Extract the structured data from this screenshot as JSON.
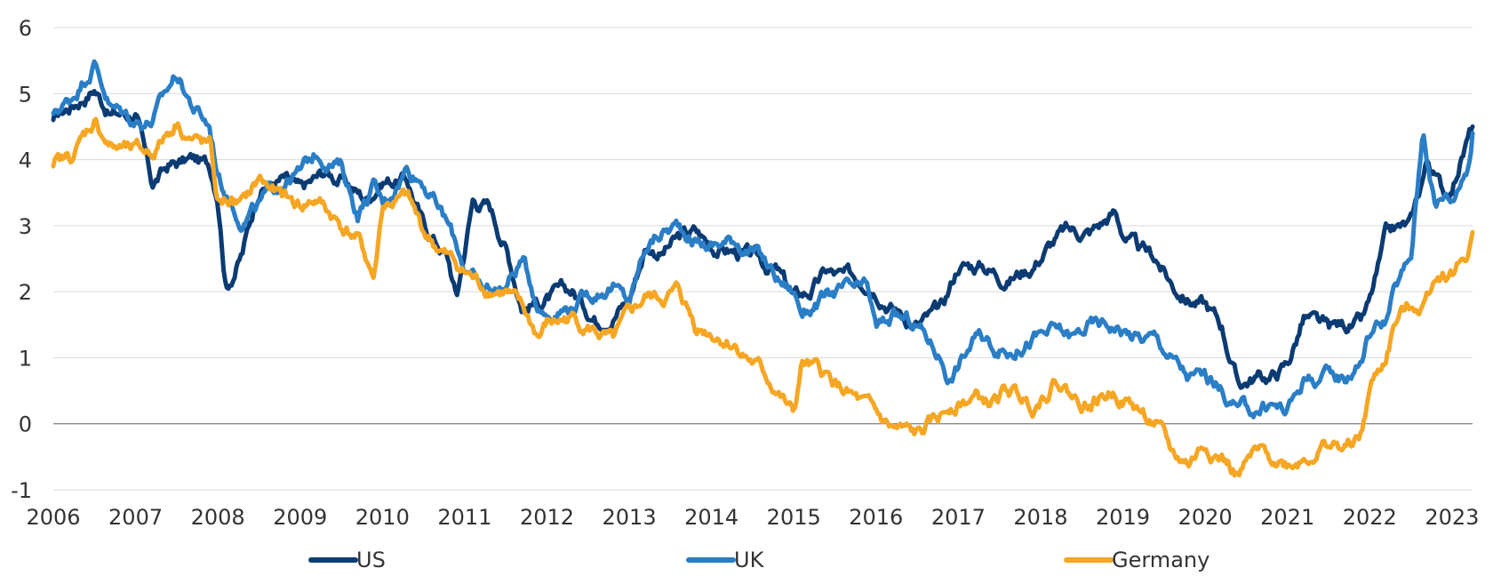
{
  "chart_data": {
    "type": "line",
    "title": "",
    "xlabel": "",
    "ylabel": "",
    "xlim": [
      2006,
      2023.25
    ],
    "ylim": [
      -1,
      6
    ],
    "x_ticks": [
      "2006",
      "2007",
      "2008",
      "2009",
      "2010",
      "2011",
      "2012",
      "2013",
      "2014",
      "2015",
      "2016",
      "2017",
      "2018",
      "2019",
      "2020",
      "2021",
      "2022",
      "2023"
    ],
    "y_ticks": [
      "6",
      "5",
      "4",
      "3",
      "2",
      "1",
      "0",
      "-1"
    ],
    "grid": true,
    "legend_position": "bottom",
    "series": [
      {
        "name": "US",
        "color": "#0b3b73",
        "points": [
          [
            2006.0,
            4.6
          ],
          [
            2006.2,
            4.8
          ],
          [
            2006.5,
            5.1
          ],
          [
            2006.7,
            4.7
          ],
          [
            2007.0,
            4.7
          ],
          [
            2007.2,
            3.6
          ],
          [
            2007.4,
            3.9
          ],
          [
            2007.7,
            4.0
          ],
          [
            2007.9,
            3.9
          ],
          [
            2008.0,
            3.5
          ],
          [
            2008.1,
            2.1
          ],
          [
            2008.3,
            2.6
          ],
          [
            2008.5,
            3.6
          ],
          [
            2008.8,
            3.7
          ],
          [
            2009.0,
            3.5
          ],
          [
            2009.3,
            3.8
          ],
          [
            2009.5,
            3.7
          ],
          [
            2009.8,
            3.4
          ],
          [
            2010.0,
            3.7
          ],
          [
            2010.3,
            3.7
          ],
          [
            2010.5,
            3.0
          ],
          [
            2010.7,
            2.7
          ],
          [
            2010.8,
            2.5
          ],
          [
            2010.9,
            1.9
          ],
          [
            2011.1,
            3.4
          ],
          [
            2011.3,
            3.3
          ],
          [
            2011.5,
            2.7
          ],
          [
            2011.7,
            1.8
          ],
          [
            2012.0,
            1.9
          ],
          [
            2012.3,
            2.0
          ],
          [
            2012.6,
            1.6
          ],
          [
            2012.8,
            1.7
          ],
          [
            2013.0,
            1.9
          ],
          [
            2013.2,
            2.7
          ],
          [
            2013.4,
            2.6
          ],
          [
            2013.6,
            2.8
          ],
          [
            2013.8,
            2.9
          ],
          [
            2014.0,
            2.7
          ],
          [
            2014.3,
            2.6
          ],
          [
            2014.5,
            2.5
          ],
          [
            2014.8,
            2.3
          ],
          [
            2015.0,
            1.9
          ],
          [
            2015.2,
            2.0
          ],
          [
            2015.4,
            2.3
          ],
          [
            2015.6,
            2.2
          ],
          [
            2015.9,
            2.2
          ],
          [
            2016.0,
            2.1
          ],
          [
            2016.2,
            1.8
          ],
          [
            2016.5,
            1.5
          ],
          [
            2016.8,
            1.7
          ],
          [
            2017.0,
            2.4
          ],
          [
            2017.3,
            2.4
          ],
          [
            2017.6,
            2.2
          ],
          [
            2017.9,
            2.4
          ],
          [
            2018.1,
            2.7
          ],
          [
            2018.3,
            2.9
          ],
          [
            2018.6,
            2.9
          ],
          [
            2018.9,
            3.2
          ],
          [
            2019.0,
            2.9
          ],
          [
            2019.2,
            2.6
          ],
          [
            2019.4,
            2.5
          ],
          [
            2019.6,
            2.1
          ],
          [
            2019.8,
            1.9
          ],
          [
            2020.0,
            1.8
          ],
          [
            2020.2,
            1.5
          ],
          [
            2020.4,
            0.6
          ],
          [
            2020.6,
            0.7
          ],
          [
            2020.8,
            0.7
          ],
          [
            2021.0,
            0.9
          ],
          [
            2021.2,
            1.6
          ],
          [
            2021.5,
            1.4
          ],
          [
            2021.7,
            1.5
          ],
          [
            2021.9,
            1.5
          ],
          [
            2022.0,
            1.8
          ],
          [
            2022.2,
            2.8
          ],
          [
            2022.3,
            2.9
          ],
          [
            2022.5,
            3.0
          ],
          [
            2022.7,
            4.0
          ],
          [
            2022.9,
            3.5
          ],
          [
            2023.0,
            3.6
          ],
          [
            2023.1,
            4.0
          ],
          [
            2023.25,
            4.5
          ]
        ]
      },
      {
        "name": "UK",
        "color": "#2a7ec6",
        "points": [
          [
            2006.0,
            4.7
          ],
          [
            2006.2,
            4.9
          ],
          [
            2006.5,
            5.5
          ],
          [
            2006.7,
            4.8
          ],
          [
            2007.0,
            4.6
          ],
          [
            2007.2,
            4.6
          ],
          [
            2007.5,
            5.3
          ],
          [
            2007.7,
            4.8
          ],
          [
            2007.9,
            4.5
          ],
          [
            2008.0,
            3.8
          ],
          [
            2008.1,
            3.5
          ],
          [
            2008.3,
            3.1
          ],
          [
            2008.5,
            3.3
          ],
          [
            2008.8,
            3.7
          ],
          [
            2009.0,
            3.8
          ],
          [
            2009.2,
            4.1
          ],
          [
            2009.5,
            3.9
          ],
          [
            2009.7,
            3.2
          ],
          [
            2009.9,
            3.6
          ],
          [
            2010.0,
            3.3
          ],
          [
            2010.3,
            3.9
          ],
          [
            2010.5,
            3.7
          ],
          [
            2010.8,
            3.0
          ],
          [
            2011.0,
            2.4
          ],
          [
            2011.2,
            2.0
          ],
          [
            2011.5,
            2.1
          ],
          [
            2011.7,
            2.5
          ],
          [
            2011.9,
            1.8
          ],
          [
            2012.0,
            1.7
          ],
          [
            2012.3,
            1.8
          ],
          [
            2012.6,
            2.0
          ],
          [
            2012.8,
            2.1
          ],
          [
            2013.0,
            1.8
          ],
          [
            2013.2,
            2.7
          ],
          [
            2013.4,
            2.9
          ],
          [
            2013.6,
            3.0
          ],
          [
            2013.8,
            2.8
          ],
          [
            2014.0,
            2.7
          ],
          [
            2014.3,
            2.8
          ],
          [
            2014.6,
            2.5
          ],
          [
            2014.8,
            2.2
          ],
          [
            2015.0,
            2.0
          ],
          [
            2015.1,
            1.7
          ],
          [
            2015.4,
            1.9
          ],
          [
            2015.6,
            2.0
          ],
          [
            2015.9,
            2.0
          ],
          [
            2016.0,
            1.4
          ],
          [
            2016.2,
            1.6
          ],
          [
            2016.5,
            1.5
          ],
          [
            2016.8,
            1.0
          ],
          [
            2016.9,
            0.7
          ],
          [
            2017.2,
            1.3
          ],
          [
            2017.4,
            1.2
          ],
          [
            2017.6,
            1.1
          ],
          [
            2017.9,
            1.3
          ],
          [
            2018.2,
            1.4
          ],
          [
            2018.4,
            1.3
          ],
          [
            2018.6,
            1.5
          ],
          [
            2018.9,
            1.5
          ],
          [
            2019.2,
            1.3
          ],
          [
            2019.4,
            1.3
          ],
          [
            2019.6,
            1.0
          ],
          [
            2019.8,
            0.7
          ],
          [
            2020.0,
            0.7
          ],
          [
            2020.2,
            0.5
          ],
          [
            2020.4,
            0.2
          ],
          [
            2020.6,
            0.2
          ],
          [
            2020.8,
            0.3
          ],
          [
            2021.0,
            0.2
          ],
          [
            2021.2,
            0.7
          ],
          [
            2021.5,
            0.7
          ],
          [
            2021.7,
            0.7
          ],
          [
            2021.9,
            1.0
          ],
          [
            2022.0,
            1.4
          ],
          [
            2022.2,
            1.6
          ],
          [
            2022.3,
            2.0
          ],
          [
            2022.5,
            2.5
          ],
          [
            2022.65,
            4.5
          ],
          [
            2022.8,
            3.3
          ],
          [
            2022.9,
            3.5
          ],
          [
            2023.0,
            3.4
          ],
          [
            2023.2,
            4.0
          ],
          [
            2023.25,
            4.4
          ]
        ]
      },
      {
        "name": "Germany",
        "color": "#f5a623",
        "points": [
          [
            2006.0,
            3.9
          ],
          [
            2006.2,
            4.0
          ],
          [
            2006.5,
            4.6
          ],
          [
            2006.7,
            4.2
          ],
          [
            2007.0,
            4.1
          ],
          [
            2007.2,
            4.1
          ],
          [
            2007.5,
            4.6
          ],
          [
            2007.7,
            4.3
          ],
          [
            2007.9,
            4.2
          ],
          [
            2008.0,
            3.3
          ],
          [
            2008.1,
            3.4
          ],
          [
            2008.3,
            3.3
          ],
          [
            2008.5,
            3.7
          ],
          [
            2008.8,
            3.4
          ],
          [
            2009.0,
            3.3
          ],
          [
            2009.2,
            3.4
          ],
          [
            2009.5,
            3.0
          ],
          [
            2009.7,
            2.8
          ],
          [
            2009.9,
            2.2
          ],
          [
            2010.0,
            3.3
          ],
          [
            2010.3,
            3.4
          ],
          [
            2010.5,
            2.9
          ],
          [
            2010.8,
            2.5
          ],
          [
            2011.0,
            2.3
          ],
          [
            2011.2,
            2.1
          ],
          [
            2011.5,
            2.0
          ],
          [
            2011.7,
            1.7
          ],
          [
            2011.9,
            1.3
          ],
          [
            2012.0,
            1.5
          ],
          [
            2012.3,
            1.6
          ],
          [
            2012.6,
            1.4
          ],
          [
            2012.8,
            1.2
          ],
          [
            2013.0,
            1.6
          ],
          [
            2013.2,
            1.9
          ],
          [
            2013.4,
            1.9
          ],
          [
            2013.6,
            2.0
          ],
          [
            2013.8,
            1.5
          ],
          [
            2014.0,
            1.4
          ],
          [
            2014.3,
            1.2
          ],
          [
            2014.6,
            0.8
          ],
          [
            2014.8,
            0.5
          ],
          [
            2015.0,
            0.1
          ],
          [
            2015.1,
            0.9
          ],
          [
            2015.4,
            0.7
          ],
          [
            2015.6,
            0.5
          ],
          [
            2015.9,
            0.2
          ],
          [
            2016.0,
            0.1
          ],
          [
            2016.2,
            -0.1
          ],
          [
            2016.5,
            -0.2
          ],
          [
            2016.8,
            0.1
          ],
          [
            2016.9,
            0.3
          ],
          [
            2017.2,
            0.4
          ],
          [
            2017.4,
            0.3
          ],
          [
            2017.6,
            0.5
          ],
          [
            2017.9,
            0.3
          ],
          [
            2018.2,
            0.7
          ],
          [
            2018.4,
            0.4
          ],
          [
            2018.6,
            0.3
          ],
          [
            2018.9,
            0.5
          ],
          [
            2019.2,
            0.2
          ],
          [
            2019.4,
            0.0
          ],
          [
            2019.6,
            -0.5
          ],
          [
            2019.8,
            -0.6
          ],
          [
            2020.0,
            -0.3
          ],
          [
            2020.2,
            -0.5
          ],
          [
            2020.4,
            -0.8
          ],
          [
            2020.6,
            -0.5
          ],
          [
            2020.8,
            -0.5
          ],
          [
            2021.0,
            -0.6
          ],
          [
            2021.2,
            -0.5
          ],
          [
            2021.5,
            -0.3
          ],
          [
            2021.7,
            -0.4
          ],
          [
            2021.9,
            -0.2
          ],
          [
            2022.0,
            0.5
          ],
          [
            2022.2,
            1.0
          ],
          [
            2022.3,
            1.5
          ],
          [
            2022.5,
            1.8
          ],
          [
            2022.65,
            1.8
          ],
          [
            2022.8,
            2.3
          ],
          [
            2022.9,
            2.3
          ],
          [
            2023.0,
            2.3
          ],
          [
            2023.2,
            2.6
          ],
          [
            2023.25,
            2.9
          ]
        ]
      }
    ]
  }
}
